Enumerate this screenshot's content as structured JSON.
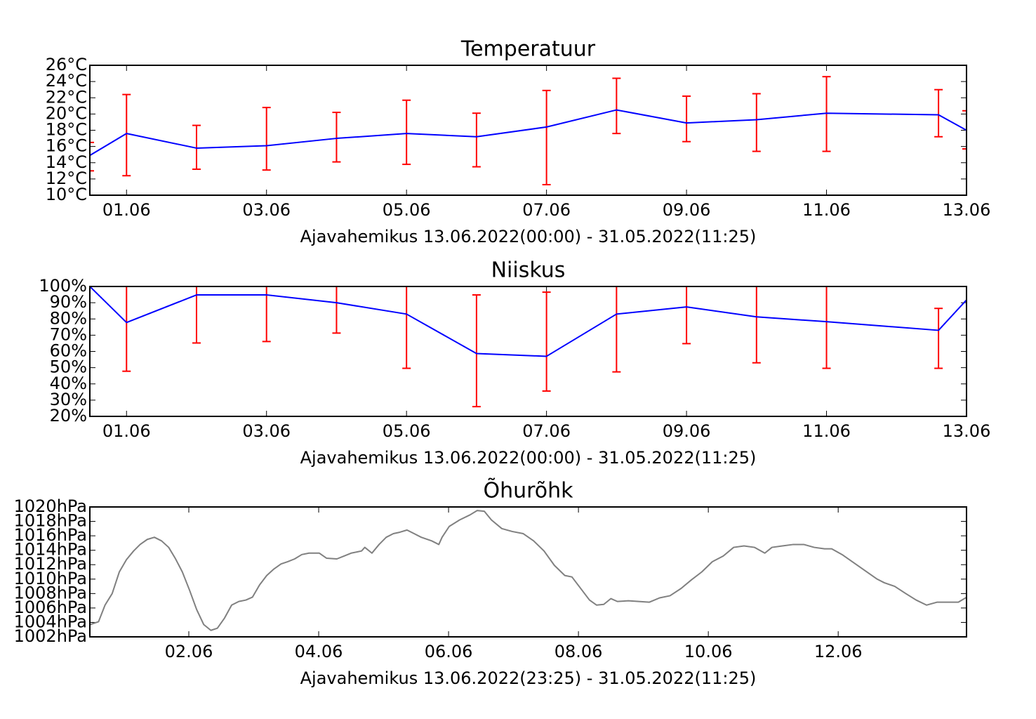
{
  "chart_data": [
    {
      "type": "line",
      "title": "Temperatuur",
      "x_label": "Ajavahemikus 13.06.2022(00:00) - 31.05.2022(11:25)",
      "x": [
        0.476,
        1,
        2,
        3,
        4,
        5,
        6,
        7,
        8,
        9,
        10,
        11,
        12.6,
        13
      ],
      "series": [
        {
          "color": "#0000ff",
          "error_color": "#ff0000",
          "values": [
            14.9,
            17.6,
            15.8,
            16.1,
            17.0,
            17.6,
            17.2,
            18.4,
            20.5,
            18.9,
            19.3,
            20.1,
            19.9,
            18.0
          ],
          "error_minus": [
            1.9,
            5.2,
            2.6,
            3.0,
            2.9,
            3.8,
            3.7,
            7.1,
            2.9,
            2.3,
            3.9,
            4.7,
            2.7,
            2.3
          ],
          "error_plus": [
            1.6,
            4.8,
            2.8,
            4.7,
            3.2,
            4.1,
            2.9,
            4.5,
            3.9,
            3.3,
            3.2,
            4.5,
            3.1,
            2.4
          ]
        }
      ],
      "xlim": [
        0.476,
        13
      ],
      "xticks": [
        {
          "value": 1,
          "label": "01.06"
        },
        {
          "value": 3,
          "label": "03.06"
        },
        {
          "value": 5,
          "label": "05.06"
        },
        {
          "value": 7,
          "label": "07.06"
        },
        {
          "value": 9,
          "label": "09.06"
        },
        {
          "value": 11,
          "label": "11.06"
        },
        {
          "value": 13,
          "label": "13.06"
        }
      ],
      "ylim": [
        10,
        26
      ],
      "yticks": [
        {
          "value": 10,
          "label": "10°C"
        },
        {
          "value": 12,
          "label": "12°C"
        },
        {
          "value": 14,
          "label": "14°C"
        },
        {
          "value": 16,
          "label": "16°C"
        },
        {
          "value": 18,
          "label": "18°C"
        },
        {
          "value": 20,
          "label": "20°C"
        },
        {
          "value": 22,
          "label": "22°C"
        },
        {
          "value": 24,
          "label": "24°C"
        },
        {
          "value": 26,
          "label": "26°C"
        }
      ],
      "grid": false
    },
    {
      "type": "line",
      "title": "Niiskus",
      "x_label": "Ajavahemikus 13.06.2022(00:00) - 31.05.2022(11:25)",
      "x": [
        0.476,
        1,
        2,
        3,
        4,
        5,
        6,
        7,
        8,
        9,
        10,
        11,
        12.6,
        13
      ],
      "series": [
        {
          "color": "#0000ff",
          "error_color": "#ff0000",
          "values": [
            100,
            77.8,
            94.8,
            94.8,
            90,
            83,
            58.7,
            57,
            83,
            87.4,
            81.3,
            78.3,
            73,
            91.7
          ],
          "error_minus": [
            null,
            30,
            29.6,
            28.7,
            18.7,
            33.4,
            32.7,
            21.4,
            35.6,
            22.6,
            28.3,
            28.7,
            23.4,
            null
          ],
          "error_plus": [
            null,
            30,
            29.6,
            28.7,
            18.7,
            33.4,
            36.1,
            39.5,
            35.6,
            22.6,
            28.3,
            28.7,
            13.5,
            null
          ]
        }
      ],
      "xlim": [
        0.476,
        13
      ],
      "xticks": [
        {
          "value": 1,
          "label": "01.06"
        },
        {
          "value": 3,
          "label": "03.06"
        },
        {
          "value": 5,
          "label": "05.06"
        },
        {
          "value": 7,
          "label": "07.06"
        },
        {
          "value": 9,
          "label": "09.06"
        },
        {
          "value": 11,
          "label": "11.06"
        },
        {
          "value": 13,
          "label": "13.06"
        }
      ],
      "ylim": [
        20,
        100
      ],
      "yticks": [
        {
          "value": 20,
          "label": "20%"
        },
        {
          "value": 30,
          "label": "30%"
        },
        {
          "value": 40,
          "label": "40%"
        },
        {
          "value": 50,
          "label": "50%"
        },
        {
          "value": 60,
          "label": "60%"
        },
        {
          "value": 70,
          "label": "70%"
        },
        {
          "value": 80,
          "label": "80%"
        },
        {
          "value": 90,
          "label": "90%"
        },
        {
          "value": 100,
          "label": "100%"
        }
      ],
      "grid": false
    },
    {
      "type": "line",
      "title": "Õhurõhk",
      "x_label": "Ajavahemikus 13.06.2022(23:25) - 31.05.2022(11:25)",
      "x": [
        0.48,
        0.61,
        0.71,
        0.82,
        0.93,
        1.04,
        1.15,
        1.25,
        1.36,
        1.47,
        1.58,
        1.69,
        1.79,
        1.9,
        2.01,
        2.12,
        2.23,
        2.34,
        2.44,
        2.55,
        2.66,
        2.77,
        2.88,
        2.98,
        3.09,
        3.2,
        3.31,
        3.42,
        3.52,
        3.63,
        3.74,
        3.85,
        4.01,
        4.12,
        4.28,
        4.39,
        4.5,
        4.66,
        4.71,
        4.82,
        4.93,
        5.04,
        5.15,
        5.25,
        5.36,
        5.47,
        5.58,
        5.74,
        5.85,
        5.9,
        6.01,
        6.17,
        6.33,
        6.44,
        6.55,
        6.66,
        6.82,
        6.98,
        7.15,
        7.31,
        7.47,
        7.63,
        7.79,
        7.9,
        8.01,
        8.17,
        8.28,
        8.39,
        8.5,
        8.6,
        8.77,
        8.93,
        9.09,
        9.25,
        9.41,
        9.58,
        9.74,
        9.9,
        10.06,
        10.23,
        10.39,
        10.55,
        10.71,
        10.87,
        10.98,
        11.14,
        11.31,
        11.47,
        11.63,
        11.79,
        11.9,
        12.06,
        12.6,
        12.71,
        12.87,
        13.04,
        13.2,
        13.36,
        13.52,
        13.68,
        13.85,
        13.98
      ],
      "series": [
        {
          "color": "#808080",
          "values": [
            1003.7,
            1004.1,
            1006.4,
            1008.0,
            1011.0,
            1012.7,
            1013.9,
            1014.8,
            1015.5,
            1015.8,
            1015.3,
            1014.4,
            1012.9,
            1011.0,
            1008.5,
            1005.8,
            1003.7,
            1002.9,
            1003.2,
            1004.6,
            1006.4,
            1006.9,
            1007.1,
            1007.5,
            1009.2,
            1010.5,
            1011.4,
            1012.1,
            1012.4,
            1012.8,
            1013.4,
            1013.6,
            1013.6,
            1012.9,
            1012.8,
            1013.2,
            1013.6,
            1013.9,
            1014.4,
            1013.6,
            1014.8,
            1015.8,
            1016.3,
            1016.5,
            1016.8,
            1016.3,
            1015.8,
            1015.3,
            1014.8,
            1015.8,
            1017.3,
            1018.2,
            1018.9,
            1019.5,
            1019.4,
            1018.2,
            1017.0,
            1016.6,
            1016.3,
            1015.3,
            1013.9,
            1011.9,
            1010.5,
            1010.3,
            1009.0,
            1007.1,
            1006.4,
            1006.5,
            1007.3,
            1006.9,
            1007.0,
            1006.9,
            1006.8,
            1007.4,
            1007.7,
            1008.7,
            1009.9,
            1011.0,
            1012.4,
            1013.2,
            1014.4,
            1014.6,
            1014.4,
            1013.6,
            1014.4,
            1014.6,
            1014.8,
            1014.8,
            1014.4,
            1014.2,
            1014.2,
            1013.4,
            1010.0,
            1009.5,
            1009.0,
            1008.0,
            1007.1,
            1006.4,
            1006.8,
            1006.8,
            1006.8,
            1007.5
          ]
        }
      ],
      "xlim": [
        0.476,
        13.976
      ],
      "xticks": [
        {
          "value": 2,
          "label": "02.06"
        },
        {
          "value": 4,
          "label": "04.06"
        },
        {
          "value": 6,
          "label": "06.06"
        },
        {
          "value": 8,
          "label": "08.06"
        },
        {
          "value": 10,
          "label": "10.06"
        },
        {
          "value": 12,
          "label": "12.06"
        }
      ],
      "ylim": [
        1002,
        1020
      ],
      "yticks": [
        {
          "value": 1002,
          "label": "1002hPa"
        },
        {
          "value": 1004,
          "label": "1004hPa"
        },
        {
          "value": 1006,
          "label": "1006hPa"
        },
        {
          "value": 1008,
          "label": "1008hPa"
        },
        {
          "value": 1010,
          "label": "1010hPa"
        },
        {
          "value": 1012,
          "label": "1012hPa"
        },
        {
          "value": 1014,
          "label": "1014hPa"
        },
        {
          "value": 1016,
          "label": "1016hPa"
        },
        {
          "value": 1018,
          "label": "1018hPa"
        },
        {
          "value": 1020,
          "label": "1020hPa"
        }
      ],
      "grid": false
    }
  ]
}
